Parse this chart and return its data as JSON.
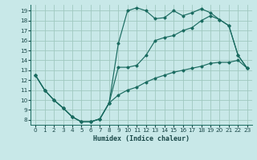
{
  "xlabel": "Humidex (Indice chaleur)",
  "bg_color": "#c8e8e8",
  "grid_color": "#a0c8c0",
  "line_color": "#1a6b60",
  "xlim": [
    -0.5,
    23.5
  ],
  "ylim": [
    7.5,
    19.6
  ],
  "xticks": [
    0,
    1,
    2,
    3,
    4,
    5,
    6,
    7,
    8,
    9,
    10,
    11,
    12,
    13,
    14,
    15,
    16,
    17,
    18,
    19,
    20,
    21,
    22,
    23
  ],
  "yticks": [
    8,
    9,
    10,
    11,
    12,
    13,
    14,
    15,
    16,
    17,
    18,
    19
  ],
  "line1_x": [
    0,
    1,
    2,
    3,
    4,
    5,
    6,
    7,
    8,
    9,
    10,
    11,
    12,
    13,
    14,
    15,
    16,
    17,
    18,
    19,
    20,
    21,
    22,
    23
  ],
  "line1_y": [
    12.5,
    11.0,
    10.0,
    9.2,
    8.3,
    7.8,
    7.8,
    8.1,
    9.7,
    15.7,
    19.0,
    19.3,
    19.0,
    18.2,
    18.3,
    19.0,
    18.5,
    18.8,
    19.2,
    18.8,
    18.1,
    17.5,
    14.5,
    13.2
  ],
  "line2_x": [
    0,
    1,
    2,
    3,
    4,
    5,
    6,
    7,
    8,
    9,
    10,
    11,
    12,
    13,
    14,
    15,
    16,
    17,
    18,
    19,
    20,
    21,
    22,
    23
  ],
  "line2_y": [
    12.5,
    11.0,
    10.0,
    9.2,
    8.3,
    7.8,
    7.8,
    8.1,
    9.7,
    13.3,
    13.3,
    13.5,
    14.5,
    16.0,
    16.3,
    16.5,
    17.0,
    17.3,
    18.0,
    18.5,
    18.1,
    17.5,
    14.5,
    13.2
  ],
  "line3_x": [
    0,
    1,
    2,
    3,
    4,
    5,
    6,
    7,
    8,
    9,
    10,
    11,
    12,
    13,
    14,
    15,
    16,
    17,
    18,
    19,
    20,
    21,
    22,
    23
  ],
  "line3_y": [
    12.5,
    11.0,
    10.0,
    9.2,
    8.3,
    7.8,
    7.8,
    8.1,
    9.7,
    10.5,
    11.0,
    11.3,
    11.8,
    12.2,
    12.5,
    12.8,
    13.0,
    13.2,
    13.4,
    13.7,
    13.8,
    13.8,
    14.0,
    13.2
  ]
}
